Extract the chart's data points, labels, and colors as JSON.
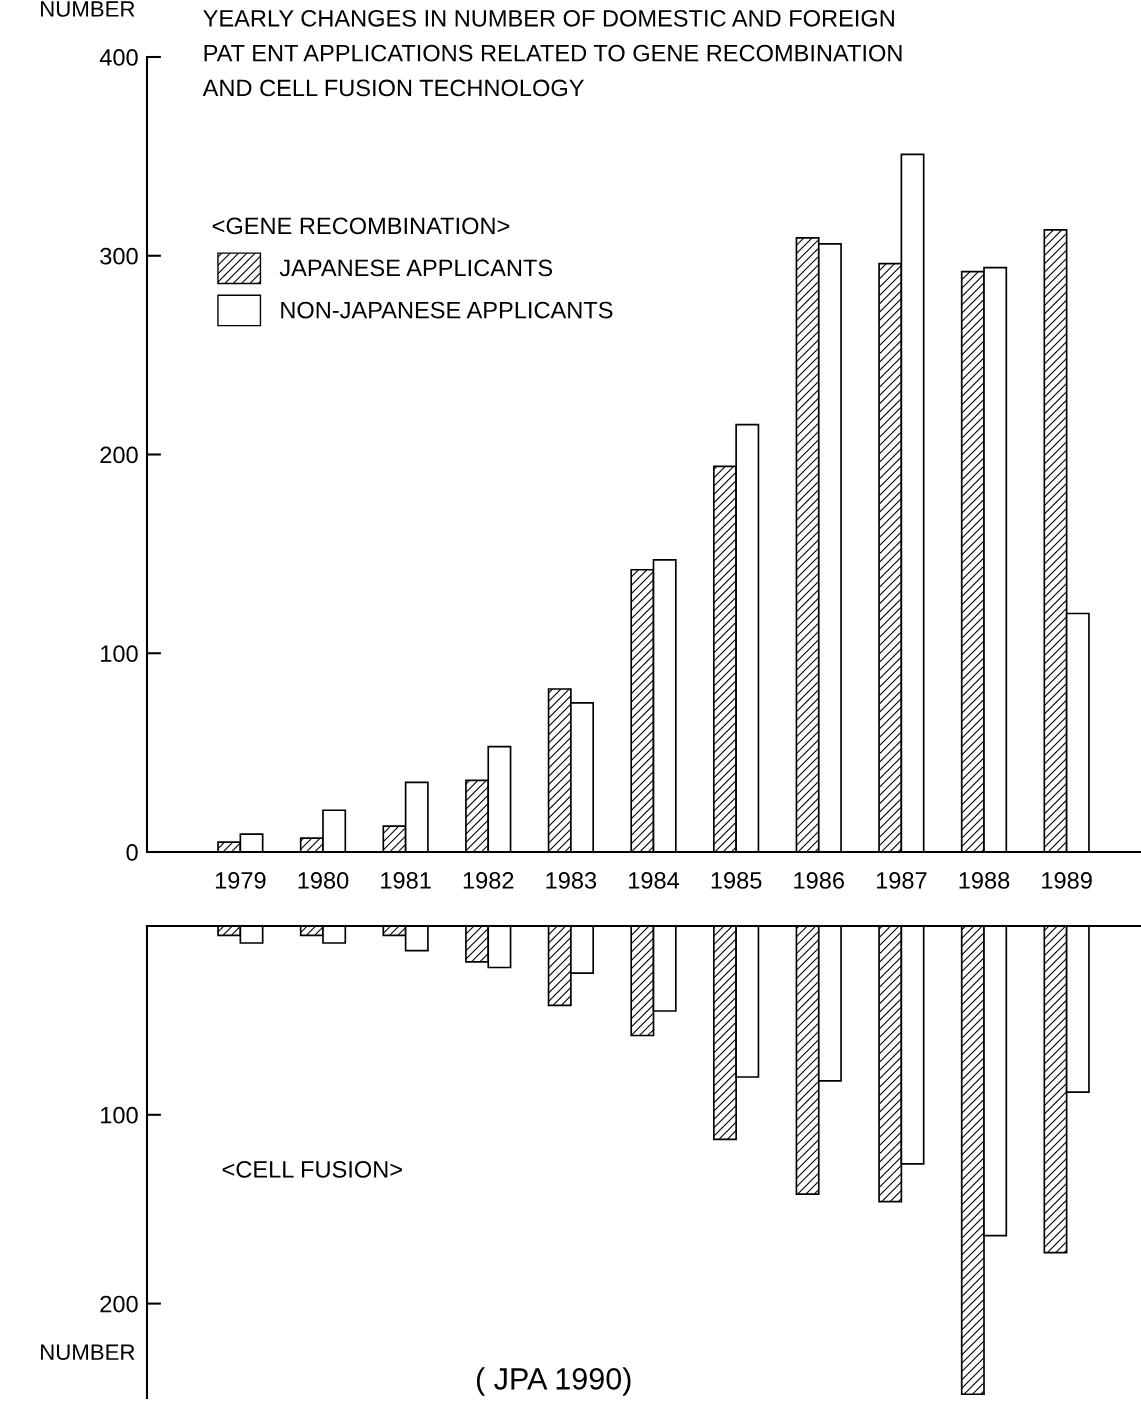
{
  "chart_data": [
    {
      "type": "bar",
      "title": "YEARLY CHANGES IN NUMBER OF DOMESTIC AND FOREIGN\nPAT ENT APPLICATIONS RELATED TO GENE RECOMBINATION\nAND CELL FUSION TECHNOLOGY",
      "ylabel": "NUMBER",
      "annotations": [
        "<GENE RECOMBINATION>"
      ],
      "categories": [
        "1979",
        "1980",
        "1981",
        "1982",
        "1983",
        "1984",
        "1985",
        "1986",
        "1987",
        "1988",
        "1989"
      ],
      "series": [
        {
          "name": "JAPANESE APPLICANTS",
          "color": "#000000",
          "values": [
            5,
            7,
            13,
            36,
            82,
            142,
            194,
            309,
            296,
            292,
            313
          ]
        },
        {
          "name": "NON-JAPANESE APPLICANTS",
          "color": "#ffffff",
          "values": [
            9,
            21,
            35,
            53,
            75,
            147,
            215,
            306,
            351,
            294,
            120
          ]
        }
      ],
      "ylim": [
        0,
        400
      ],
      "yticks": [
        0,
        100,
        200,
        300,
        400
      ],
      "grid": false,
      "legend": "top left"
    },
    {
      "type": "bar",
      "ylabel": "NUMBER",
      "annotations": [
        "<CELL FUSION>",
        "( JPA 1990)"
      ],
      "categories": [
        "1979",
        "1980",
        "1981",
        "1982",
        "1983",
        "1984",
        "1985",
        "1986",
        "1987",
        "1988",
        "1989"
      ],
      "series": [
        {
          "color": "#000000",
          "values": [
            5,
            5,
            5,
            19,
            42,
            58,
            113,
            142,
            146,
            248,
            173
          ]
        },
        {
          "color": "#ffffff",
          "values": [
            9,
            9,
            13,
            22,
            25,
            45,
            80,
            82,
            126,
            164,
            88
          ]
        }
      ],
      "ylim": [
        250,
        0
      ],
      "yticks": [
        100,
        200
      ],
      "grid": false,
      "tick_labels": "y"
    }
  ]
}
